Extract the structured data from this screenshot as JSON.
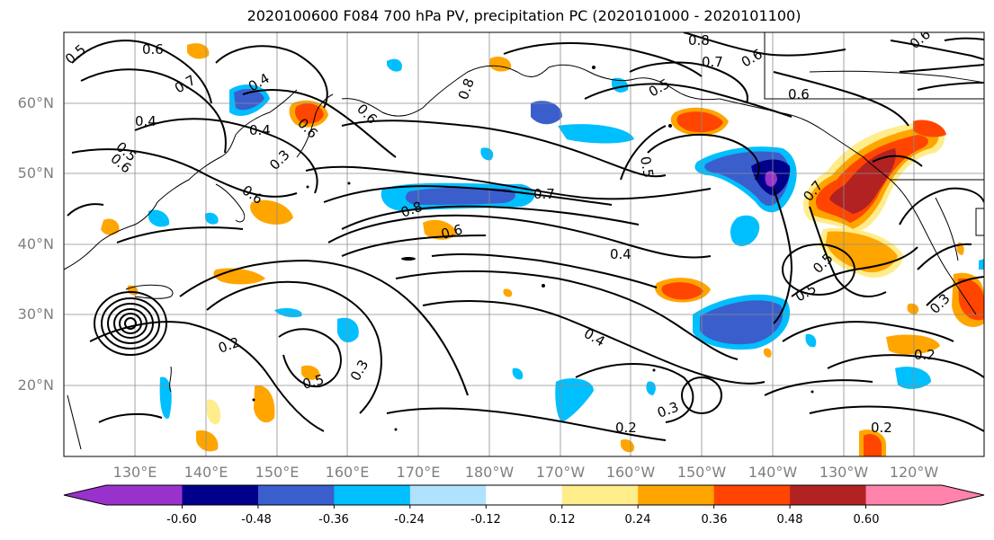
{
  "title": "2020100600 F084 700 hPa PV, precipitation PC (2020101000 - 2020101100)",
  "lat_labels": [
    "60°N",
    "50°N",
    "40°N",
    "30°N",
    "20°N"
  ],
  "lon_labels": [
    "130°E",
    "140°E",
    "150°E",
    "160°E",
    "170°E",
    "180°W",
    "170°W",
    "160°W",
    "150°W",
    "140°W",
    "130°W",
    "120°W"
  ],
  "contour_labels": [
    "0.6",
    "0.5",
    "0.7",
    "0.4",
    "0.4",
    "0.6",
    "0.3",
    "0.4",
    "0.5",
    "0.6",
    "0.6",
    "0.6",
    "0.8",
    "0.6",
    "0.8",
    "0.7",
    "0.4",
    "0.8",
    "0.7",
    "0.6",
    "0.5",
    "0.6",
    "0.5",
    "0.7",
    "0.6",
    "0.5",
    "0.4",
    "0.2",
    "0.5",
    "0.3",
    "0.2",
    "0.3",
    "0.2",
    "0.2",
    "0.5",
    "0.3"
  ],
  "colorbar": {
    "ticks": [
      "-0.60",
      "-0.48",
      "-0.36",
      "-0.24",
      "-0.12",
      "0.12",
      "0.24",
      "0.36",
      "0.48",
      "0.60"
    ],
    "colors": [
      "#9932cc",
      "#00008b",
      "#3a5fcd",
      "#00bfff",
      "#b0e2ff",
      "#ffffff",
      "#ffec8b",
      "#ffa500",
      "#ff4500",
      "#b22222",
      "#ff83aa"
    ]
  },
  "colors": {
    "positive_precip": [
      "#ffec8b",
      "#ffa500",
      "#ff4500",
      "#b22222"
    ],
    "negative_precip": [
      "#b0e2ff",
      "#00bfff",
      "#3a5fcd",
      "#00008b",
      "#9932cc"
    ],
    "tick_label": "#7f7f7f"
  }
}
